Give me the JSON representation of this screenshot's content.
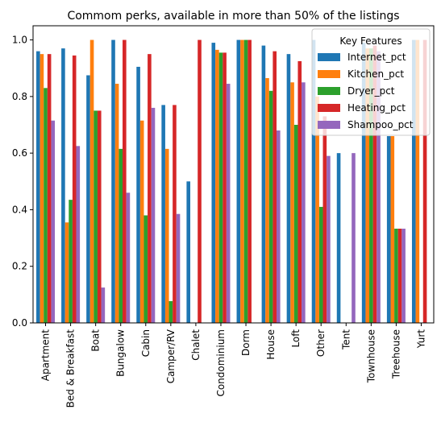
{
  "chart_data": {
    "type": "bar",
    "title": "Commom perks, available in more than 50% of the listings",
    "xlabel": "",
    "ylabel": "",
    "ylim": [
      0,
      1.05
    ],
    "yticks": [
      "0.0",
      "0.2",
      "0.4",
      "0.6",
      "0.8",
      "1.0"
    ],
    "grid": false,
    "legend": {
      "title": "Key Features",
      "placement": "top-right"
    },
    "categories": [
      "Apartment",
      "Bed & Breakfast",
      "Boat",
      "Bungalow",
      "Cabin",
      "Camper/RV",
      "Chalet",
      "Condominium",
      "Dorm",
      "House",
      "Loft",
      "Other",
      "Tent",
      "Townhouse",
      "Treehouse",
      "Yurt"
    ],
    "series": [
      {
        "name": "Internet_pct",
        "color": "#1f77b4",
        "values": [
          0.96,
          0.97,
          0.875,
          1.0,
          0.905,
          0.77,
          0.5,
          0.99,
          1.0,
          0.98,
          0.95,
          1.0,
          0.6,
          0.99,
          0.66,
          1.0
        ]
      },
      {
        "name": "Kitchen_pct",
        "color": "#ff7f0e",
        "values": [
          0.95,
          0.355,
          1.0,
          0.845,
          0.715,
          0.615,
          0.0,
          0.965,
          1.0,
          0.865,
          0.85,
          0.8,
          0.0,
          0.97,
          0.66,
          1.0
        ]
      },
      {
        "name": "Dryer_pct",
        "color": "#2ca02c",
        "values": [
          0.83,
          0.435,
          0.75,
          0.615,
          0.38,
          0.077,
          0.0,
          0.955,
          1.0,
          0.82,
          0.7,
          0.41,
          0.0,
          0.97,
          0.333,
          0.0
        ]
      },
      {
        "name": "Heating_pct",
        "color": "#d62728",
        "values": [
          0.95,
          0.945,
          0.75,
          1.0,
          0.95,
          0.77,
          1.0,
          0.955,
          1.0,
          0.96,
          0.925,
          0.73,
          0.0,
          0.98,
          0.333,
          1.0
        ]
      },
      {
        "name": "Shampoo_pct",
        "color": "#9467bd",
        "values": [
          0.715,
          0.625,
          0.125,
          0.46,
          0.76,
          0.385,
          0.0,
          0.845,
          0.0,
          0.68,
          0.85,
          0.59,
          0.6,
          0.96,
          0.333,
          0.0
        ]
      }
    ]
  }
}
